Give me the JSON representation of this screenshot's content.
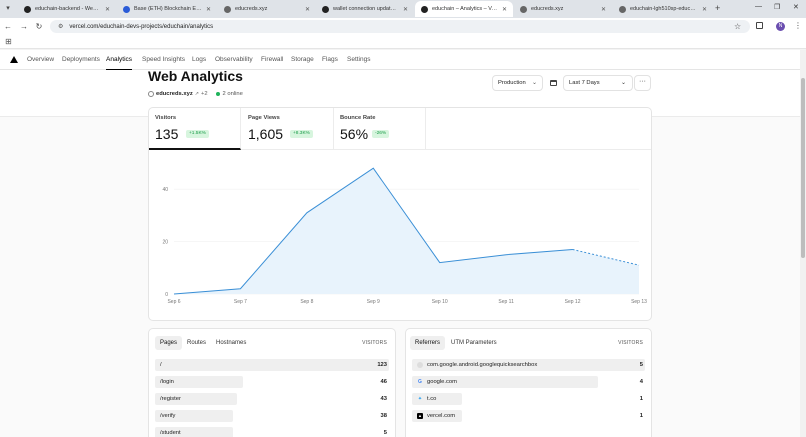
{
  "browser": {
    "tabs": [
      {
        "label": "educhain-backend - Web Servi...",
        "favicon": "github",
        "left": 18,
        "width": 98,
        "active": false
      },
      {
        "label": "Base (ETH) Blockchain Explorer",
        "favicon": "base",
        "left": 117,
        "width": 100,
        "active": false
      },
      {
        "label": "educreds.xyz",
        "favicon": "globe",
        "left": 218,
        "width": 98,
        "active": false
      },
      {
        "label": "wallet connection update · shi...",
        "favicon": "github",
        "left": 316,
        "width": 98,
        "active": false
      },
      {
        "label": "educhain – Analytics – Vercel",
        "favicon": "vercel",
        "left": 415,
        "width": 98,
        "active": true
      },
      {
        "label": "educreds.xyz",
        "favicon": "globe",
        "left": 514,
        "width": 98,
        "active": false
      },
      {
        "label": "educhain-lgh510sp-educhain-...",
        "favicon": "globe",
        "left": 613,
        "width": 100,
        "active": false
      }
    ],
    "url": "vercel.com/educhain-devs-projects/educhain/analytics",
    "profile_initial": "N"
  },
  "nav": {
    "items": [
      "Overview",
      "Deployments",
      "Analytics",
      "Speed Insights",
      "Logs",
      "Observability",
      "Firewall",
      "Storage",
      "Flags",
      "Settings"
    ],
    "active": "Analytics"
  },
  "header": {
    "title": "Web Analytics",
    "site": "educreds.xyz",
    "more": "+2",
    "online": "2 online",
    "environment": "Production",
    "range": "Last 7 Days"
  },
  "kpis": [
    {
      "label": "Visitors",
      "value": "135",
      "delta": "+1.5K%"
    },
    {
      "label": "Page Views",
      "value": "1,605",
      "delta": "+8.3K%"
    },
    {
      "label": "Bounce Rate",
      "value": "56%",
      "delta": "-26%"
    }
  ],
  "chart_data": {
    "type": "area",
    "categories": [
      "Sep 6",
      "Sep 7",
      "Sep 8",
      "Sep 9",
      "Sep 10",
      "Sep 11",
      "Sep 12",
      "Sep 13"
    ],
    "values": [
      0,
      2,
      31,
      48,
      12,
      15,
      17,
      11
    ],
    "projected_from_index": 6,
    "yticks": [
      0,
      20,
      40
    ],
    "ylim": [
      0,
      50
    ],
    "line_color": "#3a8fd6",
    "fill_color": "#e8f3fc",
    "grid": true
  },
  "pages_panel": {
    "tabs": [
      "Pages",
      "Routes",
      "Hostnames"
    ],
    "active": "Pages",
    "column": "VISITORS",
    "rows": [
      {
        "path": "/",
        "visitors": 123
      },
      {
        "path": "/login",
        "visitors": 46
      },
      {
        "path": "/register",
        "visitors": 43
      },
      {
        "path": "/verify",
        "visitors": 38
      },
      {
        "path": "/student",
        "visitors": 5
      }
    ]
  },
  "referrers_panel": {
    "tabs": [
      "Referrers",
      "UTM Parameters"
    ],
    "active": "Referrers",
    "column": "VISITORS",
    "rows": [
      {
        "name": "com.google.android.googlequicksearchbox",
        "visitors": 5,
        "icon": "globe-icon"
      },
      {
        "name": "google.com",
        "visitors": 4,
        "icon": "google-icon"
      },
      {
        "name": "t.co",
        "visitors": 1,
        "icon": "twitter-icon"
      },
      {
        "name": "vercel.com",
        "visitors": 1,
        "icon": "vercel-icon"
      }
    ]
  }
}
